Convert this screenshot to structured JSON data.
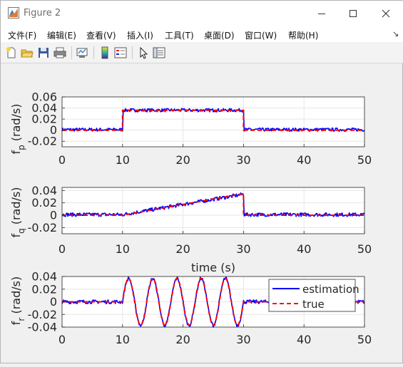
{
  "window": {
    "title": "Figure 2",
    "controls": {
      "minimize": "minimize",
      "maximize": "maximize",
      "close": "close"
    }
  },
  "menu": {
    "items": [
      "文件(F)",
      "编辑(E)",
      "查看(V)",
      "插入(I)",
      "工具(T)",
      "桌面(D)",
      "窗口(W)",
      "帮助(H)"
    ],
    "overflow_glyph": "↘"
  },
  "toolbar": {
    "icons": [
      "new-figure-icon",
      "open-file-icon",
      "save-icon",
      "print-icon",
      "link-plot-icon",
      "colorbar-icon",
      "legend-icon",
      "pointer-icon",
      "property-inspector-icon"
    ]
  },
  "colors": {
    "estimation": "#0000ff",
    "true": "#ff0000",
    "axes_bg": "#ffffff",
    "figure_bg": "#f0f0f0"
  },
  "legend": {
    "entries": [
      "estimation",
      "true"
    ],
    "placement": "upper-right of third axes"
  },
  "chart_data": [
    {
      "type": "line",
      "ylabel": "f_p (rad/s)",
      "xlabel": "",
      "xlim": [
        0,
        50
      ],
      "ylim": [
        -0.03,
        0.06
      ],
      "xticks": [
        0,
        10,
        20,
        30,
        40,
        50
      ],
      "yticks": [
        -0.02,
        0,
        0.02,
        0.04,
        0.06
      ],
      "ytick_labels": [
        "-0.02",
        "0",
        "0.02",
        "0.04",
        "0.06"
      ],
      "grid": true,
      "series": [
        {
          "name": "true",
          "style": "dashed",
          "x": [
            0,
            10,
            10,
            30,
            30,
            50
          ],
          "y": [
            0,
            0,
            0.036,
            0.036,
            0,
            0
          ]
        },
        {
          "name": "estimation",
          "style": "solid",
          "noise": 0.003,
          "x": [
            0,
            10,
            10,
            30,
            30,
            50
          ],
          "y": [
            0.001,
            0.001,
            0.036,
            0.036,
            0.001,
            0.001
          ]
        }
      ]
    },
    {
      "type": "line",
      "ylabel": "f_q (rad/s)",
      "xlabel": "time (s)",
      "xlim": [
        0,
        50
      ],
      "ylim": [
        -0.03,
        0.045
      ],
      "xticks": [
        0,
        10,
        20,
        30,
        40,
        50
      ],
      "yticks": [
        -0.02,
        0,
        0.02,
        0.04
      ],
      "ytick_labels": [
        "-0.02",
        "0",
        "0.02",
        "0.04"
      ],
      "grid": true,
      "series": [
        {
          "name": "true",
          "style": "dashed",
          "x": [
            0,
            10,
            30,
            30,
            50
          ],
          "y": [
            0,
            0,
            0.035,
            0,
            0
          ]
        },
        {
          "name": "estimation",
          "style": "solid",
          "noise": 0.003,
          "x": [
            0,
            10,
            30,
            30,
            50
          ],
          "y": [
            0.001,
            0.001,
            0.034,
            0.001,
            0.001
          ]
        }
      ]
    },
    {
      "type": "line",
      "ylabel": "f_r (rad/s)",
      "xlabel": "",
      "xlim": [
        0,
        50
      ],
      "ylim": [
        -0.04,
        0.04
      ],
      "xticks": [
        0,
        10,
        20,
        30,
        40,
        50
      ],
      "yticks": [
        -0.04,
        -0.02,
        0,
        0.02,
        0.04
      ],
      "ytick_labels": [
        "-0.04",
        "-0.02",
        "0",
        "0.02",
        "0.04"
      ],
      "grid": true,
      "series": [
        {
          "name": "true",
          "style": "dashed",
          "sine": {
            "start": 10,
            "end": 30,
            "amplitude": 0.037,
            "period": 4
          },
          "x": [
            0,
            50
          ],
          "y": [
            0,
            0
          ]
        },
        {
          "name": "estimation",
          "style": "solid",
          "noise": 0.003,
          "sine": {
            "start": 10,
            "end": 30,
            "amplitude": 0.037,
            "period": 4
          },
          "x": [
            0,
            50
          ],
          "y": [
            0,
            0
          ]
        }
      ]
    }
  ]
}
